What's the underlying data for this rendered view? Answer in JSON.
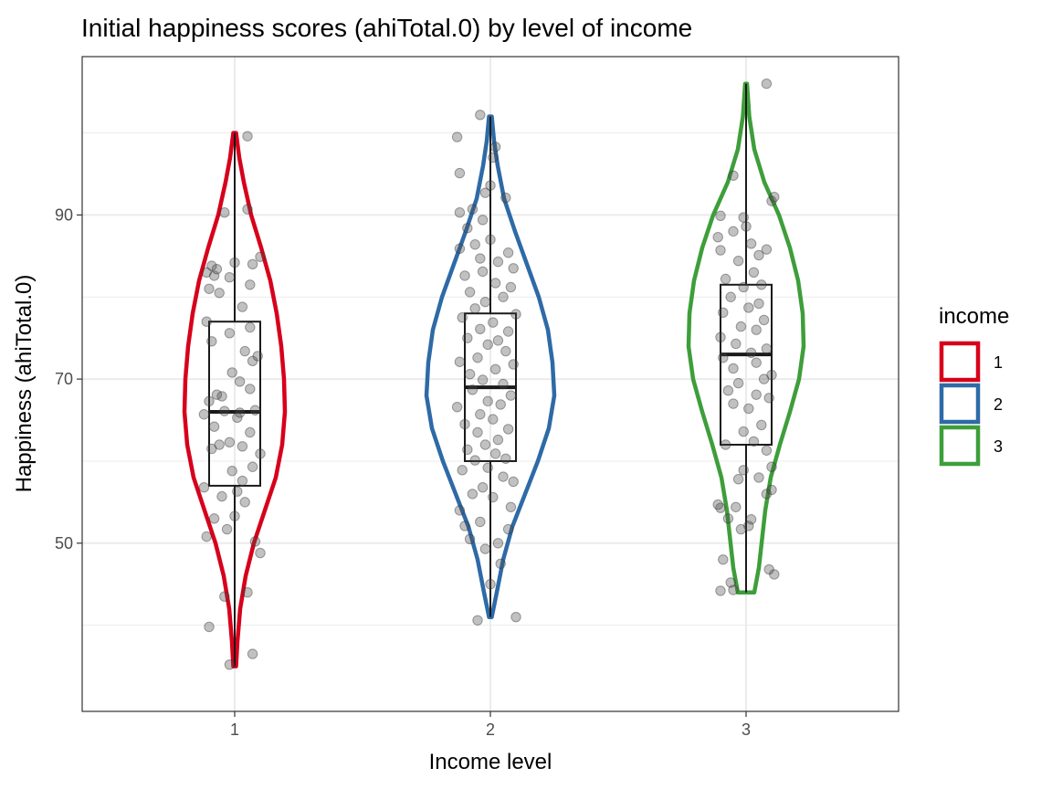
{
  "chart_data": {
    "type": "violin",
    "title": "Initial happiness scores (ahiTotal.0) by level of income",
    "xlabel": "Income level",
    "ylabel": "Happiness (ahiTotal.0)",
    "categories": [
      "1",
      "2",
      "3"
    ],
    "ylim": [
      29.5,
      109.3
    ],
    "y_ticks": [
      50,
      70,
      90
    ],
    "y_tick_labels": [
      "50",
      "70",
      "90"
    ],
    "grid": true,
    "legend": {
      "title": "income",
      "position": "right",
      "entries": [
        {
          "label": "1",
          "color": "#d7001b"
        },
        {
          "label": "2",
          "color": "#2e6aa6"
        },
        {
          "label": "3",
          "color": "#3e9e3a"
        }
      ]
    },
    "series": [
      {
        "category": "1",
        "color": "#d7001b",
        "min": 35,
        "q1": 57,
        "median": 66,
        "q3": 77,
        "max": 100,
        "violin": [
          [
            35,
            1.5
          ],
          [
            38,
            3
          ],
          [
            42,
            6
          ],
          [
            46,
            12
          ],
          [
            50,
            21
          ],
          [
            54,
            33
          ],
          [
            58,
            45
          ],
          [
            62,
            52
          ],
          [
            66,
            55
          ],
          [
            70,
            54
          ],
          [
            74,
            51
          ],
          [
            78,
            46
          ],
          [
            82,
            39
          ],
          [
            86,
            29
          ],
          [
            90,
            18
          ],
          [
            94,
            10
          ],
          [
            97,
            5
          ],
          [
            100,
            1.5
          ]
        ],
        "points": [
          [
            0.98,
            35.2
          ],
          [
            1.07,
            36.5
          ],
          [
            0.9,
            39.8
          ],
          [
            0.96,
            43.5
          ],
          [
            1.05,
            44.0
          ],
          [
            1.1,
            48.8
          ],
          [
            1.08,
            50.2
          ],
          [
            0.89,
            50.8
          ],
          [
            0.97,
            51.7
          ],
          [
            0.92,
            53.0
          ],
          [
            1.0,
            53.3
          ],
          [
            1.04,
            55.0
          ],
          [
            0.95,
            55.7
          ],
          [
            1.01,
            56.3
          ],
          [
            0.88,
            56.8
          ],
          [
            1.03,
            57.6
          ],
          [
            0.99,
            58.8
          ],
          [
            1.07,
            59.3
          ],
          [
            1.1,
            60.9
          ],
          [
            0.91,
            61.5
          ],
          [
            1.03,
            61.8
          ],
          [
            0.94,
            62.0
          ],
          [
            0.98,
            62.3
          ],
          [
            1.06,
            63.5
          ],
          [
            0.92,
            64.2
          ],
          [
            1.01,
            65.3
          ],
          [
            0.88,
            65.7
          ],
          [
            0.96,
            66.1
          ],
          [
            1.02,
            65.9
          ],
          [
            1.08,
            66.2
          ],
          [
            0.9,
            67.3
          ],
          [
            0.95,
            67.9
          ],
          [
            0.93,
            68.1
          ],
          [
            1.06,
            68.8
          ],
          [
            1.02,
            69.7
          ],
          [
            0.99,
            70.8
          ],
          [
            1.07,
            72.2
          ],
          [
            1.09,
            72.8
          ],
          [
            1.04,
            73.4
          ],
          [
            0.91,
            74.6
          ],
          [
            0.98,
            75.6
          ],
          [
            1.06,
            76.3
          ],
          [
            0.89,
            77.0
          ],
          [
            1.03,
            78.8
          ],
          [
            0.94,
            80.5
          ],
          [
            0.9,
            81.0
          ],
          [
            1.06,
            81.5
          ],
          [
            0.92,
            82.6
          ],
          [
            0.98,
            82.4
          ],
          [
            0.89,
            83.0
          ],
          [
            0.93,
            83.4
          ],
          [
            0.91,
            83.8
          ],
          [
            1.0,
            84.2
          ],
          [
            1.07,
            84.0
          ],
          [
            1.1,
            84.9
          ],
          [
            0.96,
            90.3
          ],
          [
            1.05,
            90.7
          ],
          [
            1.05,
            99.6
          ]
        ]
      },
      {
        "category": "2",
        "color": "#2e6aa6",
        "min": 41,
        "q1": 60,
        "median": 69,
        "q3": 78,
        "max": 102,
        "violin": [
          [
            41,
            1.5
          ],
          [
            44,
            7
          ],
          [
            48,
            14
          ],
          [
            52,
            24
          ],
          [
            56,
            38
          ],
          [
            60,
            52
          ],
          [
            64,
            64
          ],
          [
            68,
            70
          ],
          [
            72,
            68
          ],
          [
            76,
            63
          ],
          [
            80,
            53
          ],
          [
            84,
            40
          ],
          [
            88,
            27
          ],
          [
            92,
            15
          ],
          [
            96,
            8
          ],
          [
            99,
            4
          ],
          [
            102,
            1.5
          ]
        ],
        "points": [
          [
            1.95,
            40.6
          ],
          [
            2.1,
            41.0
          ],
          [
            2.0,
            45.0
          ],
          [
            2.04,
            47.5
          ],
          [
            1.98,
            49.3
          ],
          [
            2.03,
            50.0
          ],
          [
            1.92,
            50.5
          ],
          [
            2.07,
            51.7
          ],
          [
            1.9,
            52.1
          ],
          [
            1.96,
            52.6
          ],
          [
            1.88,
            54.0
          ],
          [
            2.08,
            54.4
          ],
          [
            2.01,
            55.6
          ],
          [
            1.93,
            56.0
          ],
          [
            1.97,
            56.8
          ],
          [
            2.09,
            57.5
          ],
          [
            2.05,
            58.1
          ],
          [
            1.89,
            58.9
          ],
          [
            1.99,
            59.2
          ],
          [
            1.94,
            60.1
          ],
          [
            2.06,
            60.3
          ],
          [
            2.02,
            60.9
          ],
          [
            1.91,
            61.4
          ],
          [
            1.98,
            62.0
          ],
          [
            2.03,
            62.6
          ],
          [
            1.95,
            63.5
          ],
          [
            2.07,
            63.9
          ],
          [
            1.9,
            64.5
          ],
          [
            2.01,
            65.1
          ],
          [
            1.96,
            65.7
          ],
          [
            1.87,
            66.6
          ],
          [
            2.04,
            66.9
          ],
          [
            1.99,
            67.3
          ],
          [
            2.08,
            68.0
          ],
          [
            1.93,
            68.7
          ],
          [
            2.05,
            69.4
          ],
          [
            1.97,
            69.9
          ],
          [
            1.92,
            70.6
          ],
          [
            2.02,
            71.2
          ],
          [
            2.09,
            71.8
          ],
          [
            1.88,
            72.1
          ],
          [
            1.95,
            72.6
          ],
          [
            2.06,
            73.4
          ],
          [
            1.99,
            74.2
          ],
          [
            2.03,
            74.7
          ],
          [
            1.91,
            75.0
          ],
          [
            2.07,
            75.8
          ],
          [
            1.96,
            76.1
          ],
          [
            2.01,
            76.9
          ],
          [
            1.89,
            77.5
          ],
          [
            2.1,
            77.9
          ],
          [
            1.94,
            78.6
          ],
          [
            1.98,
            79.4
          ],
          [
            2.05,
            80.0
          ],
          [
            1.92,
            80.6
          ],
          [
            2.08,
            81.2
          ],
          [
            2.02,
            81.7
          ],
          [
            1.9,
            82.6
          ],
          [
            1.97,
            83.1
          ],
          [
            2.09,
            83.5
          ],
          [
            2.03,
            84.3
          ],
          [
            1.96,
            84.7
          ],
          [
            2.07,
            85.4
          ],
          [
            1.88,
            85.9
          ],
          [
            1.94,
            86.4
          ],
          [
            2.0,
            87.0
          ],
          [
            1.91,
            88.4
          ],
          [
            1.97,
            89.4
          ],
          [
            1.88,
            90.3
          ],
          [
            1.93,
            90.7
          ],
          [
            2.06,
            92.1
          ],
          [
            1.98,
            92.7
          ],
          [
            2.0,
            93.6
          ],
          [
            1.88,
            95.1
          ],
          [
            2.01,
            97.0
          ],
          [
            2.02,
            98.3
          ],
          [
            1.87,
            99.5
          ],
          [
            1.96,
            102.2
          ]
        ]
      },
      {
        "category": "3",
        "color": "#3e9e3a",
        "min": 44,
        "q1": 62,
        "median": 73,
        "q3": 81.5,
        "max": 106,
        "violin": [
          [
            44,
            9
          ],
          [
            47,
            14
          ],
          [
            50,
            17
          ],
          [
            54,
            21
          ],
          [
            58,
            27
          ],
          [
            62,
            37
          ],
          [
            66,
            48
          ],
          [
            70,
            58
          ],
          [
            74,
            63
          ],
          [
            78,
            62
          ],
          [
            82,
            57
          ],
          [
            86,
            48
          ],
          [
            90,
            36
          ],
          [
            94,
            20
          ],
          [
            98,
            9
          ],
          [
            102,
            3.5
          ],
          [
            106,
            1
          ]
        ],
        "points": [
          [
            2.9,
            44.2
          ],
          [
            2.95,
            44.3
          ],
          [
            2.94,
            45.2
          ],
          [
            2.91,
            48.0
          ],
          [
            3.09,
            46.8
          ],
          [
            3.11,
            46.2
          ],
          [
            2.98,
            51.7
          ],
          [
            3.01,
            52.1
          ],
          [
            3.02,
            52.9
          ],
          [
            2.93,
            53.0
          ],
          [
            2.9,
            54.3
          ],
          [
            2.89,
            54.7
          ],
          [
            2.96,
            54.4
          ],
          [
            3.08,
            56.0
          ],
          [
            3.1,
            56.5
          ],
          [
            2.97,
            57.8
          ],
          [
            3.05,
            58.0
          ],
          [
            2.99,
            58.9
          ],
          [
            3.1,
            59.3
          ],
          [
            3.08,
            61.3
          ],
          [
            2.92,
            62.0
          ],
          [
            3.03,
            62.4
          ],
          [
            2.99,
            63.6
          ],
          [
            3.06,
            64.4
          ],
          [
            3.01,
            66.4
          ],
          [
            2.95,
            67.0
          ],
          [
            3.09,
            67.7
          ],
          [
            3.04,
            68.1
          ],
          [
            2.93,
            68.6
          ],
          [
            2.97,
            69.5
          ],
          [
            3.07,
            70.0
          ],
          [
            3.1,
            70.5
          ],
          [
            2.95,
            71.3
          ],
          [
            3.04,
            72.0
          ],
          [
            2.91,
            72.6
          ],
          [
            3.02,
            73.2
          ],
          [
            3.08,
            73.7
          ],
          [
            2.96,
            74.3
          ],
          [
            2.9,
            75.1
          ],
          [
            3.04,
            76.0
          ],
          [
            2.98,
            76.4
          ],
          [
            3.07,
            77.2
          ],
          [
            2.91,
            78.1
          ],
          [
            3.01,
            78.7
          ],
          [
            3.05,
            79.2
          ],
          [
            2.94,
            80.0
          ],
          [
            2.99,
            81.2
          ],
          [
            3.06,
            81.5
          ],
          [
            2.92,
            82.2
          ],
          [
            3.03,
            83.0
          ],
          [
            2.97,
            84.4
          ],
          [
            3.05,
            85.1
          ],
          [
            2.9,
            85.7
          ],
          [
            3.08,
            85.8
          ],
          [
            3.02,
            86.5
          ],
          [
            2.89,
            87.3
          ],
          [
            2.95,
            88.0
          ],
          [
            3.0,
            88.6
          ],
          [
            2.99,
            89.7
          ],
          [
            2.9,
            89.9
          ],
          [
            3.1,
            91.7
          ],
          [
            3.11,
            92.2
          ],
          [
            2.95,
            94.8
          ],
          [
            3.08,
            106.0
          ]
        ]
      }
    ]
  }
}
